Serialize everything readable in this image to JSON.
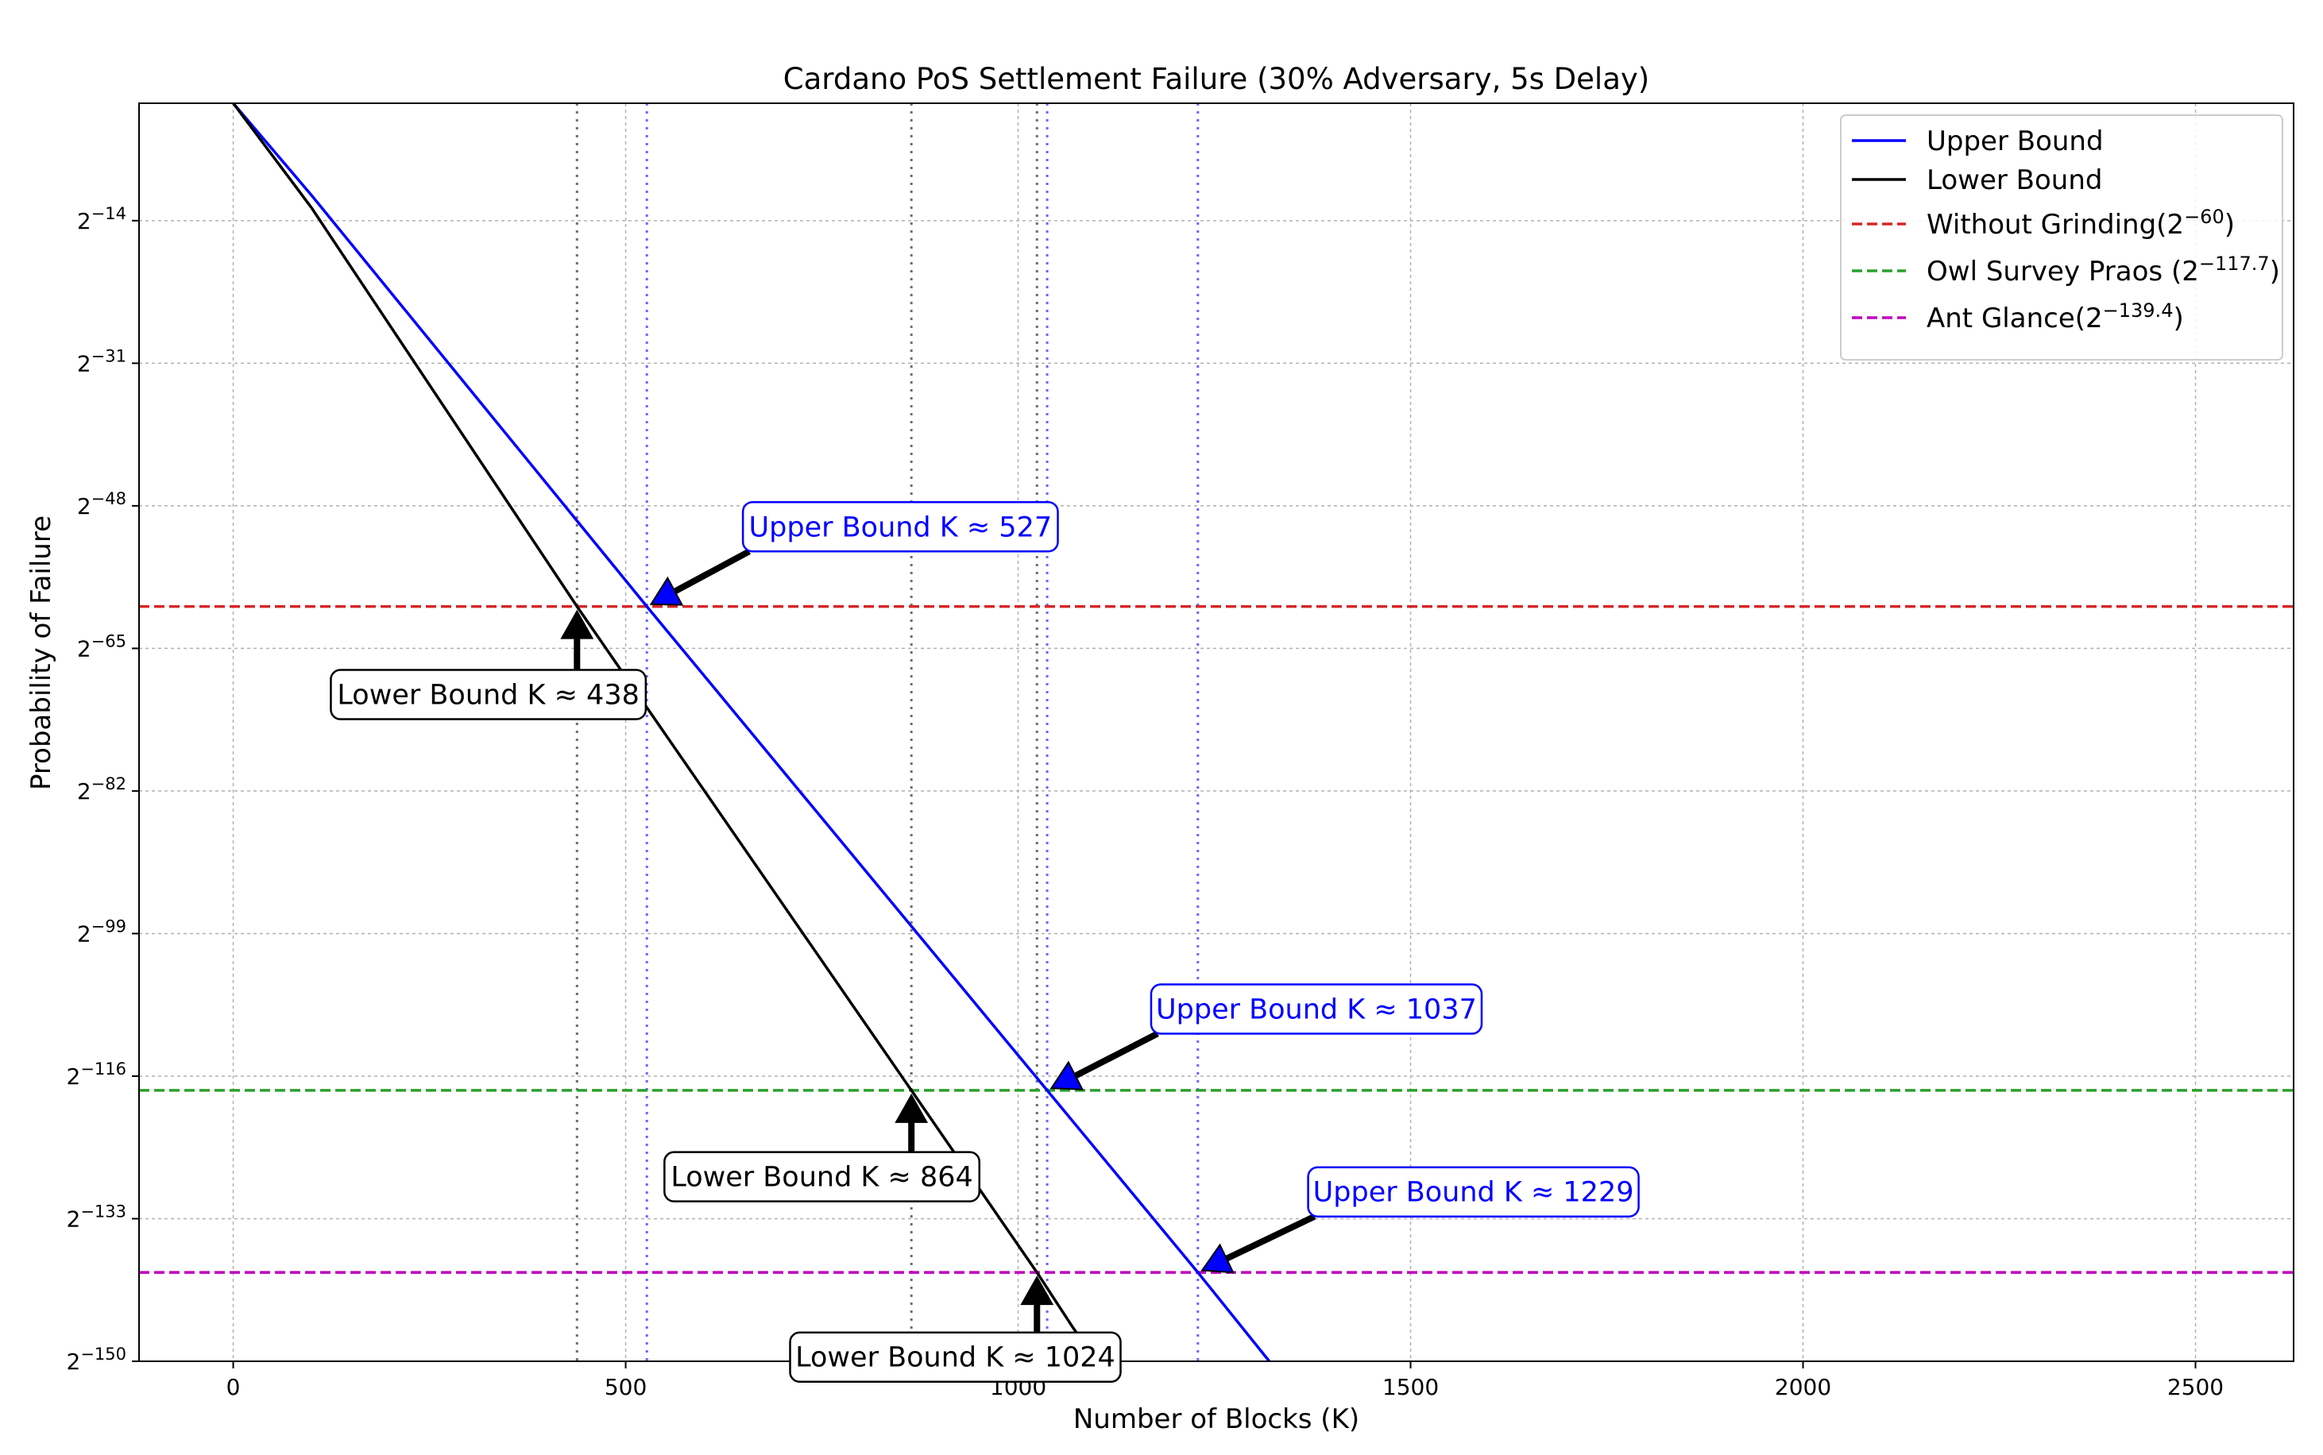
{
  "chart_data": {
    "type": "line",
    "title": "Cardano PoS Settlement Failure (30% Adversary, 5s Delay)",
    "xlabel": "Number of Blocks (K)",
    "ylabel": "Probability of Failure",
    "xlim": [
      -120,
      2625
    ],
    "ylim": [
      -150,
      0
    ],
    "x_ticks": [
      0,
      500,
      1000,
      1500,
      2000,
      2500
    ],
    "y_scale": "log2",
    "y_ticks": [
      -14,
      -31,
      -48,
      -65,
      -82,
      -99,
      -116,
      -133,
      -150
    ],
    "y_tick_base": "2",
    "grid": true,
    "legend_position": "upper right",
    "series": [
      {
        "name": "Upper Bound",
        "color": "#0000ff",
        "points": [
          [
            0,
            0
          ],
          [
            100,
            -11
          ],
          [
            527,
            -60
          ],
          [
            1037,
            -117.7
          ],
          [
            1229,
            -139.4
          ],
          [
            1320,
            -150
          ]
        ]
      },
      {
        "name": "Lower Bound",
        "color": "#000000",
        "points": [
          [
            0,
            0
          ],
          [
            100,
            -12.5
          ],
          [
            438,
            -60
          ],
          [
            864,
            -117.7
          ],
          [
            1024,
            -139.4
          ],
          [
            1070,
            -146
          ],
          [
            1100,
            -150
          ]
        ]
      }
    ],
    "thresholds": [
      {
        "name": "Without Grinding",
        "legend_sup": "−60",
        "value": -60,
        "color": "#d62728"
      },
      {
        "name": "Owl Survey Praos",
        "legend_sup": "−117.7",
        "value": -117.7,
        "color": "#2ca02c"
      },
      {
        "name": "Ant Glance",
        "legend_sup": "−139.4",
        "value": -139.4,
        "color": "#bf00bf"
      }
    ],
    "vlines": [
      {
        "x": 438,
        "color": "#555555"
      },
      {
        "x": 527,
        "color": "#4d4dff"
      },
      {
        "x": 864,
        "color": "#555555"
      },
      {
        "x": 1024,
        "color": "#555555"
      },
      {
        "x": 1037,
        "color": "#4d4dff"
      },
      {
        "x": 1229,
        "color": "#4d4dff"
      }
    ],
    "annotations": [
      {
        "text": "Upper Bound K ≈ 527",
        "x": 527,
        "y": -60,
        "text_x": 850,
        "text_y": -50.5,
        "color": "#0000ff"
      },
      {
        "text": "Lower Bound K ≈ 438",
        "x": 438,
        "y": -60,
        "text_x": 325,
        "text_y": -70.5,
        "color": "#000000"
      },
      {
        "text": "Upper Bound K ≈ 1037",
        "x": 1037,
        "y": -117.7,
        "text_x": 1380,
        "text_y": -108,
        "color": "#0000ff"
      },
      {
        "text": "Lower Bound K ≈ 864",
        "x": 864,
        "y": -117.7,
        "text_x": 750,
        "text_y": -128,
        "color": "#000000"
      },
      {
        "text": "Upper Bound K ≈ 1229",
        "x": 1229,
        "y": -139.4,
        "text_x": 1580,
        "text_y": -129.8,
        "color": "#0000ff"
      },
      {
        "text": "Lower Bound K ≈ 1024",
        "x": 1024,
        "y": -139.4,
        "text_x": 920,
        "text_y": -149.5,
        "color": "#000000"
      }
    ]
  }
}
